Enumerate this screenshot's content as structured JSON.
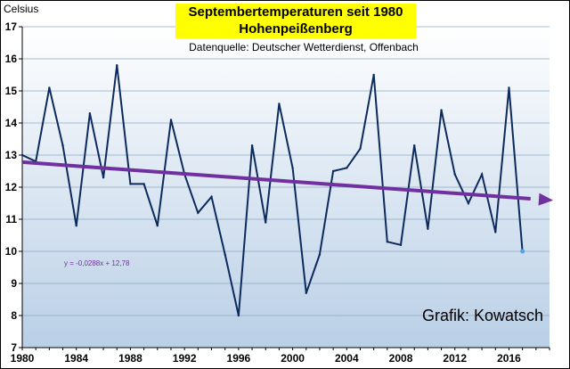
{
  "chart_data": {
    "type": "line",
    "title": "Septembertemperaturen seit 1980",
    "subtitle": "Hohenpeißenberg",
    "source": "Datenquelle: Deutscher Wetterdienst, Offenbach",
    "ylabel": "Celsius",
    "credit": "Grafik: Kowatsch",
    "trendline_label": "y = -0,0288x + 12,78",
    "xlim": [
      1980,
      2019
    ],
    "ylim": [
      7,
      17
    ],
    "y_ticks": [
      "7",
      "8",
      "9",
      "10",
      "11",
      "12",
      "13",
      "14",
      "15",
      "16",
      "17"
    ],
    "x_ticks": [
      "1980",
      "1984",
      "1988",
      "1992",
      "1996",
      "2000",
      "2004",
      "2008",
      "2012",
      "2016"
    ],
    "grid": "horizontal",
    "x": [
      1980,
      1981,
      1982,
      1983,
      1984,
      1985,
      1986,
      1987,
      1988,
      1989,
      1990,
      1991,
      1992,
      1993,
      1994,
      1995,
      1996,
      1997,
      1998,
      1999,
      2000,
      2001,
      2002,
      2003,
      2004,
      2005,
      2006,
      2007,
      2008,
      2009,
      2010,
      2011,
      2012,
      2013,
      2014,
      2015,
      2016,
      2017
    ],
    "series": [
      {
        "values": [
          13.0,
          12.8,
          15.1,
          13.3,
          10.8,
          14.3,
          12.3,
          15.8,
          12.1,
          12.1,
          10.8,
          14.1,
          12.4,
          11.2,
          11.7,
          9.9,
          8.0,
          13.3,
          10.9,
          14.6,
          12.6,
          8.7,
          9.9,
          12.5,
          12.6,
          13.2,
          15.5,
          10.3,
          10.2,
          13.3,
          10.7,
          14.4,
          12.4,
          11.5,
          12.4,
          10.6,
          15.1,
          10.0
        ],
        "color": "#0d2a5c"
      }
    ],
    "trend": {
      "slope": -0.0288,
      "intercept": 12.78,
      "color": "#7030a0"
    },
    "colors": {
      "plot_fill_top": "#ffffff",
      "plot_fill_bottom": "#b9cfe6",
      "grid": "#8ea7c4",
      "line": "#0d2a5c",
      "trend": "#7030a0",
      "title_bg": "#ffff00",
      "last_point": "#4fa7e8"
    }
  }
}
